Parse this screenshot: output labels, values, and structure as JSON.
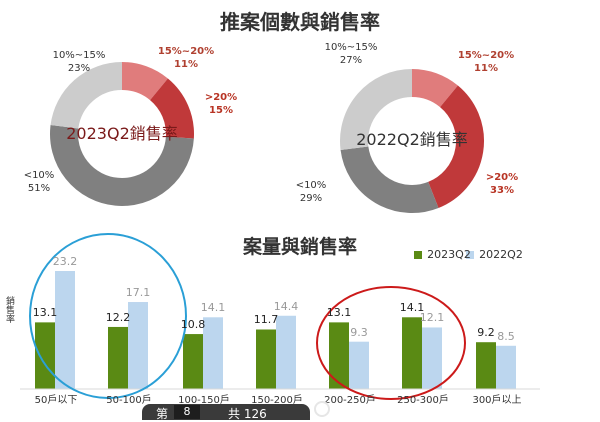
{
  "titles": {
    "top": "推案個數與銷售率",
    "bottom": "案量與銷售率"
  },
  "chart_data": [
    {
      "type": "pie",
      "center_label": "2023Q2銷售率",
      "slices": [
        {
          "label_range": "15%~20%",
          "value": 11,
          "value_text": "11%",
          "color": "#e07c7c",
          "text_color": "#b04030"
        },
        {
          "label_range": ">20%",
          "value": 15,
          "value_text": "15%",
          "color": "#c0393a",
          "text_color": "#b83424"
        },
        {
          "label_range": "<10%",
          "value": 51,
          "value_text": "51%",
          "color": "#808080",
          "text_color": "#333333"
        },
        {
          "label_range": "10%~15%",
          "value": 23,
          "value_text": "23%",
          "color": "#cccccc",
          "text_color": "#333333"
        }
      ]
    },
    {
      "type": "pie",
      "center_label": "2022Q2銷售率",
      "slices": [
        {
          "label_range": "15%~20%",
          "value": 11,
          "value_text": "11%",
          "color": "#e07c7c",
          "text_color": "#b04030"
        },
        {
          "label_range": ">20%",
          "value": 33,
          "value_text": "33%",
          "color": "#c0393a",
          "text_color": "#b83424"
        },
        {
          "label_range": "<10%",
          "value": 29,
          "value_text": "29%",
          "color": "#808080",
          "text_color": "#333333"
        },
        {
          "label_range": "10%~15%",
          "value": 27,
          "value_text": "27%",
          "color": "#cccccc",
          "text_color": "#333333"
        }
      ]
    },
    {
      "type": "bar",
      "ylabel": "銷售率",
      "ylim": [
        0,
        25
      ],
      "categories": [
        "50戶以下",
        "50-100戶",
        "100-150戶",
        "150-200戶",
        "200-250戶",
        "250-300戶",
        "300戶以上"
      ],
      "series": [
        {
          "name": "2023Q2",
          "color": "#5a8a14",
          "values": [
            13.1,
            12.2,
            10.8,
            11.7,
            13.1,
            14.1,
            9.2
          ]
        },
        {
          "name": "2022Q2",
          "color": "#bcd6ee",
          "values": [
            23.2,
            17.1,
            14.1,
            14.4,
            9.3,
            12.1,
            8.5
          ]
        }
      ],
      "highlight_colors": [
        "#2a9fd6",
        "#cc1a1a"
      ]
    }
  ],
  "footer": {
    "left_text": "第",
    "page": "8",
    "total": "共 126"
  }
}
